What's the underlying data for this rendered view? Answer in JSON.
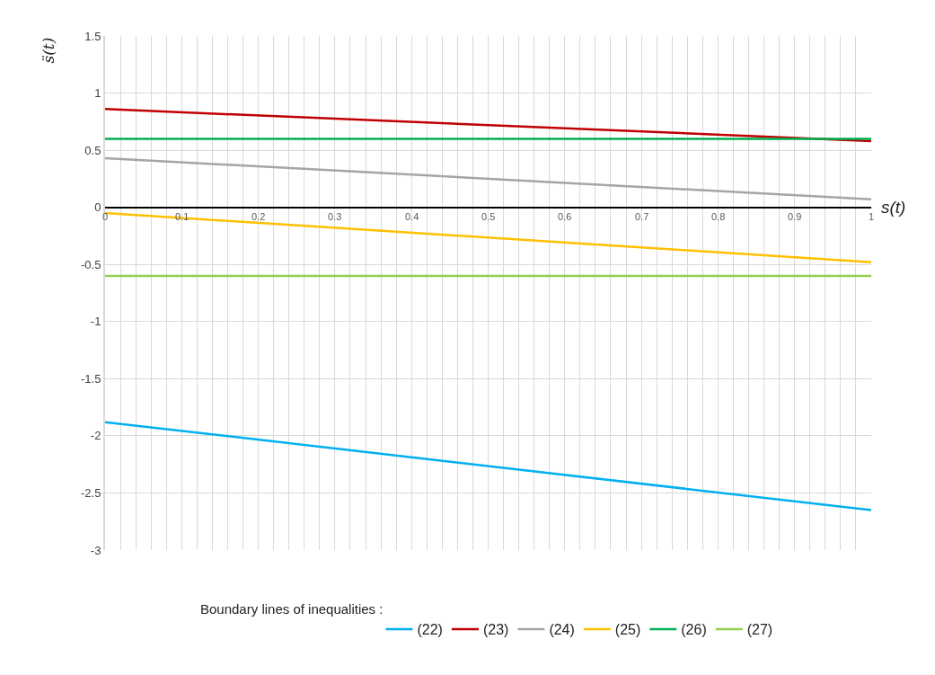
{
  "chart_data": {
    "type": "line",
    "xlabel": "s(t)",
    "ylabel": "s̈(t)",
    "legend_title": "Boundary lines of inequalities :",
    "x": [
      0,
      1
    ],
    "series": [
      {
        "name": "(22)",
        "color": "#00b0f0",
        "values": [
          -1.88,
          -2.65
        ]
      },
      {
        "name": "(23)",
        "color": "#c00000",
        "values": [
          0.86,
          0.58
        ]
      },
      {
        "name": "(24)",
        "color": "#a5a5a5",
        "values": [
          0.43,
          0.07
        ]
      },
      {
        "name": "(25)",
        "color": "#ffc000",
        "values": [
          -0.05,
          -0.48
        ]
      },
      {
        "name": "(26)",
        "color": "#00b050",
        "values": [
          0.6,
          0.6
        ]
      },
      {
        "name": "(27)",
        "color": "#92d050",
        "values": [
          -0.6,
          -0.6
        ]
      }
    ],
    "xlim": [
      0,
      1
    ],
    "xticks": [
      0,
      0.1,
      0.2,
      0.3,
      0.4,
      0.5,
      0.6,
      0.7,
      0.8,
      0.9,
      1
    ],
    "ylim": [
      -3,
      1.5
    ],
    "yticks": [
      -3,
      -2.5,
      -2,
      -1.5,
      -1,
      -0.5,
      0,
      0.5,
      1,
      1.5
    ],
    "grid": true,
    "legend": "bottom",
    "marker": "none",
    "line_style": "solid"
  }
}
